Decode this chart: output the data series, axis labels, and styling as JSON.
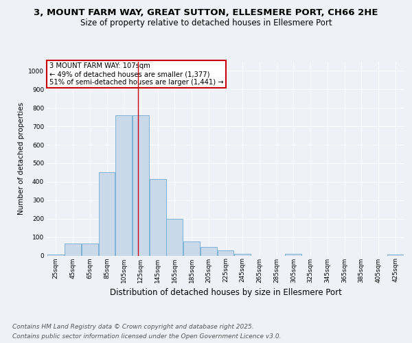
{
  "title_line1": "3, MOUNT FARM WAY, GREAT SUTTON, ELLESMERE PORT, CH66 2HE",
  "title_line2": "Size of property relative to detached houses in Ellesmere Port",
  "xlabel": "Distribution of detached houses by size in Ellesmere Port",
  "ylabel": "Number of detached properties",
  "categories": [
    "25sqm",
    "45sqm",
    "65sqm",
    "85sqm",
    "105sqm",
    "125sqm",
    "145sqm",
    "165sqm",
    "185sqm",
    "205sqm",
    "225sqm",
    "245sqm",
    "265sqm",
    "285sqm",
    "305sqm",
    "325sqm",
    "345sqm",
    "365sqm",
    "385sqm",
    "405sqm",
    "425sqm"
  ],
  "values": [
    5,
    65,
    65,
    450,
    760,
    760,
    415,
    200,
    75,
    45,
    27,
    10,
    0,
    0,
    10,
    0,
    0,
    0,
    0,
    0,
    5
  ],
  "bar_color": "#c9d9ea",
  "bar_edge_color": "#6baad0",
  "redline_x": 4.85,
  "redline_label": "3 MOUNT FARM WAY: 107sqm",
  "annotation_line2": "← 49% of detached houses are smaller (1,377)",
  "annotation_line3": "51% of semi-detached houses are larger (1,441) →",
  "annotation_box_facecolor": "#ffffff",
  "annotation_box_edgecolor": "#cc0000",
  "ylim": [
    0,
    1050
  ],
  "yticks": [
    0,
    100,
    200,
    300,
    400,
    500,
    600,
    700,
    800,
    900,
    1000
  ],
  "background_color": "#eef2f7",
  "grid_color": "#ffffff",
  "footer_line1": "Contains HM Land Registry data © Crown copyright and database right 2025.",
  "footer_line2": "Contains public sector information licensed under the Open Government Licence v3.0.",
  "title_fontsize": 9.5,
  "subtitle_fontsize": 8.5,
  "xlabel_fontsize": 8.5,
  "ylabel_fontsize": 7.5,
  "tick_fontsize": 6.5,
  "annotation_fontsize": 7.2,
  "footer_fontsize": 6.5
}
